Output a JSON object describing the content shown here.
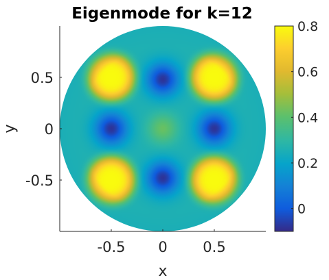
{
  "chart_data": {
    "type": "heatmap",
    "title": "Eigenmode for k=12",
    "xlabel": "x",
    "ylabel": "y",
    "xlim": [
      -1,
      1
    ],
    "ylim": [
      -1,
      1
    ],
    "x_ticks": [
      -0.5,
      0,
      0.5
    ],
    "x_tick_labels": [
      "-0.5",
      "0",
      "0.5"
    ],
    "y_ticks": [
      0.5,
      0,
      -0.5
    ],
    "y_tick_labels": [
      "0.5",
      "0",
      "-0.5"
    ],
    "domain_shape": "unit disk",
    "colormap": "parula",
    "clim": [
      -0.1,
      0.8
    ],
    "colorbar_ticks": [
      0.8,
      0.6,
      0.4,
      0.2,
      0
    ],
    "colorbar_tick_labels": [
      "0.8",
      "0.6",
      "0.4",
      "0.2",
      "0"
    ],
    "grid": false,
    "features": [
      {
        "kind": "maximum",
        "x": -0.5,
        "y": 0.5,
        "value": 0.8
      },
      {
        "kind": "maximum",
        "x": 0.5,
        "y": 0.5,
        "value": 0.8
      },
      {
        "kind": "maximum",
        "x": -0.5,
        "y": -0.5,
        "value": 0.8
      },
      {
        "kind": "maximum",
        "x": 0.5,
        "y": -0.5,
        "value": 0.8
      },
      {
        "kind": "minimum",
        "x": 0,
        "y": 0.48,
        "value": -0.08
      },
      {
        "kind": "minimum",
        "x": 0,
        "y": -0.48,
        "value": -0.08
      },
      {
        "kind": "minimum",
        "x": -0.5,
        "y": 0,
        "value": -0.08
      },
      {
        "kind": "minimum",
        "x": 0.5,
        "y": 0,
        "value": -0.08
      },
      {
        "kind": "local-peak",
        "x": 0,
        "y": 0,
        "value": 0.42
      }
    ]
  }
}
